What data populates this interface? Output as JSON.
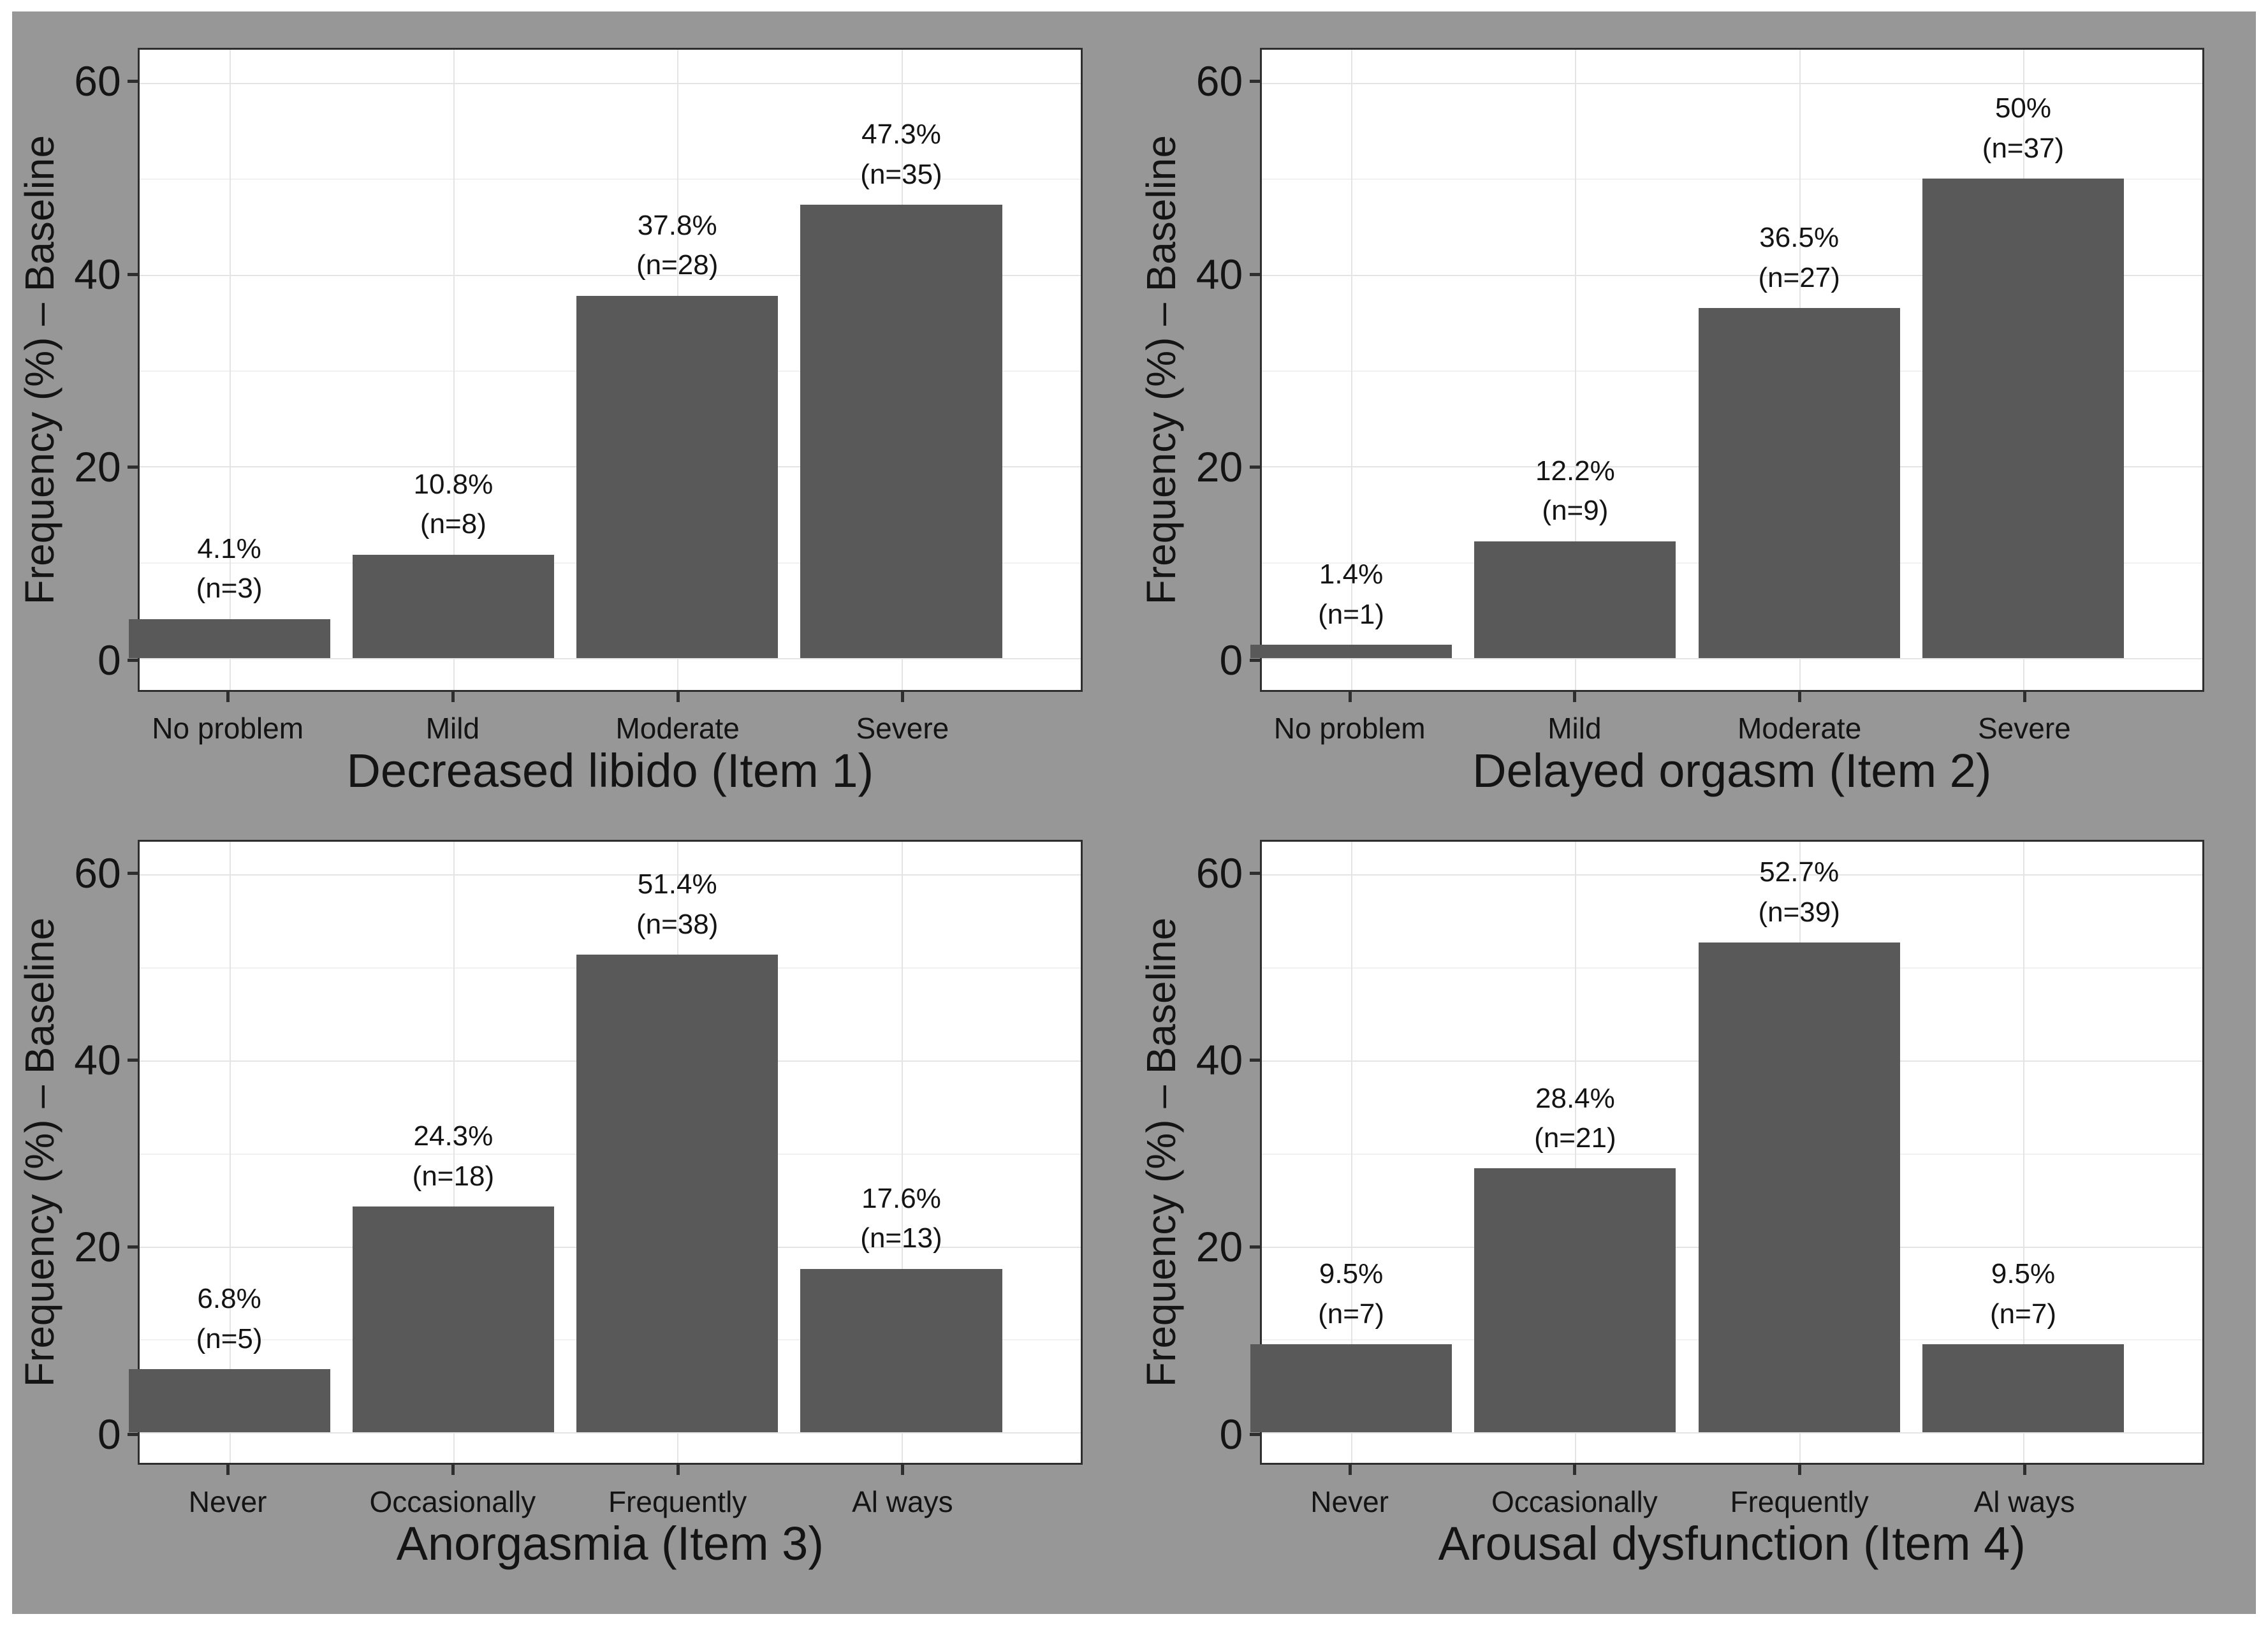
{
  "figure": {
    "page_background": "#ffffff",
    "background": "#979797",
    "panel_background": "#ffffff",
    "panel_border_color": "#2e2e2e",
    "bar_color": "#595959",
    "grid_major_color": "#e4e4e4",
    "grid_minor_color": "#f1f1f1",
    "text_color": "#141414"
  },
  "y_axis": {
    "label": "Frequency (%) – Baseline",
    "ticks": [
      0,
      20,
      40,
      60
    ],
    "minor_ticks": [
      10,
      30,
      50
    ],
    "range": [
      0,
      60
    ]
  },
  "chart_data": [
    {
      "type": "bar",
      "title": "Decreased libido (Item 1)",
      "ylabel": "Frequency (%) – Baseline",
      "ylim": [
        0,
        60
      ],
      "grid": true,
      "categories": [
        "No problem",
        "Mild",
        "Moderate",
        "Severe"
      ],
      "values": [
        4.1,
        10.8,
        37.8,
        47.3
      ],
      "counts": [
        3,
        8,
        28,
        35
      ],
      "pct_labels": [
        "4.1%",
        "10.8%",
        "37.8%",
        "47.3%"
      ],
      "n_labels": [
        "(n=3)",
        "(n=8)",
        "(n=28)",
        "(n=35)"
      ]
    },
    {
      "type": "bar",
      "title": "Delayed orgasm (Item 2)",
      "ylabel": "Frequency (%) – Baseline",
      "ylim": [
        0,
        60
      ],
      "grid": true,
      "categories": [
        "No problem",
        "Mild",
        "Moderate",
        "Severe"
      ],
      "values": [
        1.4,
        12.2,
        36.5,
        50
      ],
      "counts": [
        1,
        9,
        27,
        37
      ],
      "pct_labels": [
        "1.4%",
        "12.2%",
        "36.5%",
        "50%"
      ],
      "n_labels": [
        "(n=1)",
        "(n=9)",
        "(n=27)",
        "(n=37)"
      ]
    },
    {
      "type": "bar",
      "title": "Anorgasmia (Item 3)",
      "ylabel": "Frequency (%) – Baseline",
      "ylim": [
        0,
        60
      ],
      "grid": true,
      "categories": [
        "Never",
        "Occasionally",
        "Frequently",
        "Al ways"
      ],
      "values": [
        6.8,
        24.3,
        51.4,
        17.6
      ],
      "counts": [
        5,
        18,
        38,
        13
      ],
      "pct_labels": [
        "6.8%",
        "24.3%",
        "51.4%",
        "17.6%"
      ],
      "n_labels": [
        "(n=5)",
        "(n=18)",
        "(n=38)",
        "(n=13)"
      ]
    },
    {
      "type": "bar",
      "title": "Arousal dysfunction (Item 4)",
      "ylabel": "Frequency (%) – Baseline",
      "ylim": [
        0,
        60
      ],
      "grid": true,
      "categories": [
        "Never",
        "Occasionally",
        "Frequently",
        "Al ways"
      ],
      "values": [
        9.5,
        28.4,
        52.7,
        9.5
      ],
      "counts": [
        7,
        21,
        39,
        7
      ],
      "pct_labels": [
        "9.5%",
        "28.4%",
        "52.7%",
        "9.5%"
      ],
      "n_labels": [
        "(n=7)",
        "(n=21)",
        "(n=39)",
        "(n=7)"
      ]
    }
  ]
}
